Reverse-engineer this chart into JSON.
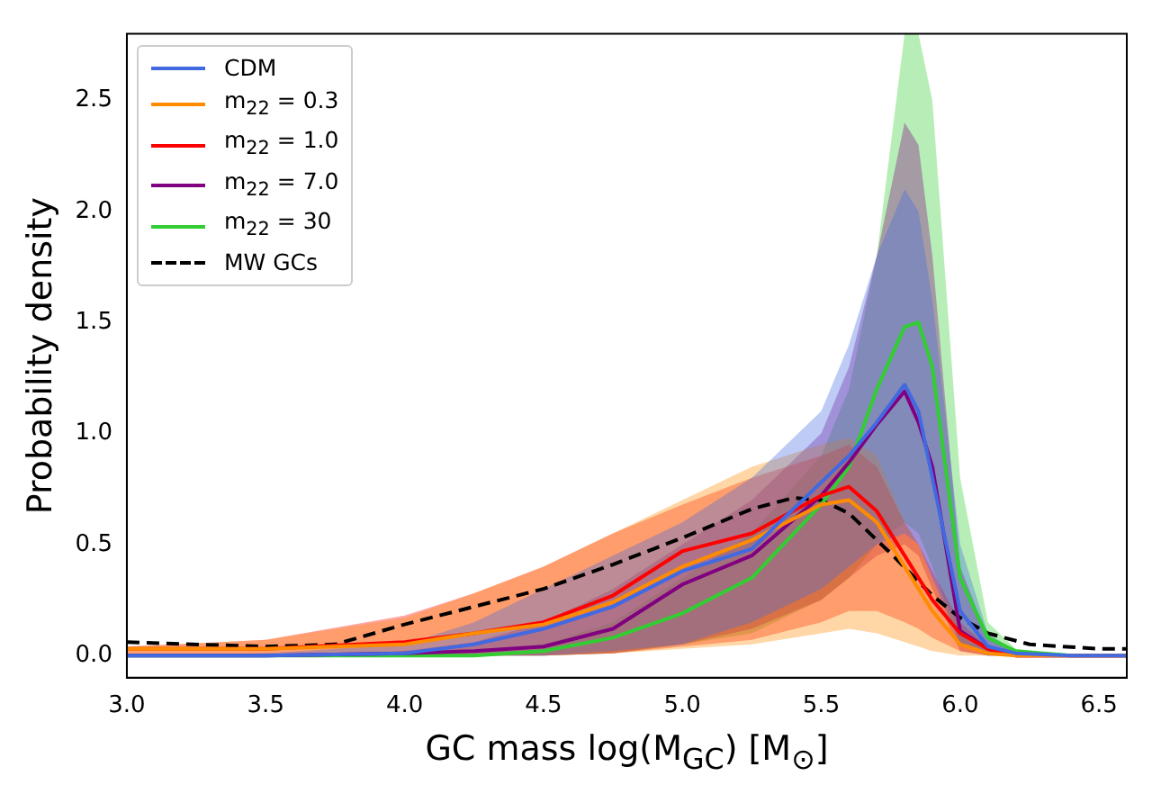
{
  "chart_data": {
    "type": "line",
    "xlabel": "GC mass log(M$_{GC}$) [M$_{⊙}$]",
    "ylabel": "Probability density",
    "x": [
      3.0,
      3.5,
      4.0,
      4.25,
      4.5,
      4.75,
      5.0,
      5.25,
      5.5,
      5.6,
      5.7,
      5.8,
      5.85,
      5.9,
      6.0,
      6.1,
      6.2,
      6.4,
      6.6
    ],
    "series": [
      {
        "name": "CDM",
        "color": "#4169e1",
        "values": [
          0,
          0,
          0.01,
          0.05,
          0.12,
          0.22,
          0.38,
          0.48,
          0.78,
          0.9,
          1.05,
          1.22,
          1.1,
          0.8,
          0.2,
          0.04,
          0.01,
          0,
          0
        ],
        "upper": [
          0,
          0.01,
          0.05,
          0.15,
          0.3,
          0.45,
          0.6,
          0.8,
          1.1,
          1.4,
          1.8,
          2.1,
          2.0,
          1.6,
          0.5,
          0.1,
          0.02,
          0,
          0
        ],
        "lower": [
          0,
          0,
          0,
          0,
          0,
          0.02,
          0.05,
          0.15,
          0.3,
          0.4,
          0.5,
          0.55,
          0.5,
          0.35,
          0.05,
          0,
          0,
          0,
          0
        ]
      },
      {
        "name": "m$_{22}$ = 0.3",
        "color": "#ff8c00",
        "values": [
          0.03,
          0.03,
          0.05,
          0.1,
          0.14,
          0.24,
          0.4,
          0.52,
          0.68,
          0.7,
          0.6,
          0.4,
          0.3,
          0.2,
          0.05,
          0.01,
          0,
          0,
          0
        ],
        "upper": [
          0.04,
          0.07,
          0.17,
          0.28,
          0.4,
          0.55,
          0.7,
          0.85,
          0.95,
          0.98,
          0.9,
          0.6,
          0.5,
          0.35,
          0.12,
          0.03,
          0,
          0,
          0
        ],
        "lower": [
          0,
          0,
          0,
          0,
          0,
          0.01,
          0.03,
          0.05,
          0.1,
          0.12,
          0.1,
          0.06,
          0.04,
          0.02,
          0,
          0,
          0,
          0,
          0
        ]
      },
      {
        "name": "m$_{22}$ = 1.0",
        "color": "#ff0000",
        "values": [
          0.03,
          0.03,
          0.06,
          0.1,
          0.15,
          0.27,
          0.47,
          0.55,
          0.72,
          0.76,
          0.65,
          0.45,
          0.35,
          0.25,
          0.1,
          0.03,
          0,
          0,
          0
        ],
        "upper": [
          0.04,
          0.07,
          0.18,
          0.28,
          0.4,
          0.55,
          0.68,
          0.8,
          0.9,
          0.95,
          0.85,
          0.6,
          0.5,
          0.38,
          0.15,
          0.04,
          0,
          0,
          0
        ],
        "lower": [
          0,
          0,
          0,
          0,
          0,
          0.01,
          0.04,
          0.07,
          0.15,
          0.2,
          0.2,
          0.15,
          0.12,
          0.08,
          0.02,
          0,
          0,
          0,
          0
        ]
      },
      {
        "name": "m$_{22}$ = 7.0",
        "color": "#800080",
        "values": [
          0,
          0,
          0.01,
          0.02,
          0.04,
          0.12,
          0.32,
          0.45,
          0.72,
          0.87,
          1.04,
          1.19,
          1.05,
          0.85,
          0.11,
          0.03,
          0,
          0,
          0
        ],
        "upper": [
          0,
          0,
          0.02,
          0.06,
          0.15,
          0.3,
          0.5,
          0.7,
          1.0,
          1.3,
          1.8,
          2.4,
          2.3,
          1.8,
          0.4,
          0.08,
          0.01,
          0,
          0
        ],
        "lower": [
          0,
          0,
          0,
          0,
          0,
          0.01,
          0.05,
          0.12,
          0.25,
          0.35,
          0.45,
          0.5,
          0.45,
          0.3,
          0.02,
          0,
          0,
          0,
          0
        ]
      },
      {
        "name": "m$_{22}$ = 30",
        "color": "#32cd32",
        "values": [
          0,
          0,
          0,
          0,
          0.02,
          0.08,
          0.19,
          0.35,
          0.68,
          0.85,
          1.2,
          1.48,
          1.5,
          1.3,
          0.35,
          0.08,
          0.02,
          0,
          0
        ],
        "upper": [
          0,
          0,
          0,
          0.01,
          0.05,
          0.15,
          0.35,
          0.55,
          0.9,
          1.2,
          1.8,
          2.8,
          2.8,
          2.5,
          0.8,
          0.15,
          0.03,
          0,
          0
        ],
        "lower": [
          0,
          0,
          0,
          0,
          0,
          0.01,
          0.05,
          0.1,
          0.25,
          0.35,
          0.5,
          0.6,
          0.55,
          0.4,
          0.05,
          0,
          0,
          0,
          0
        ]
      },
      {
        "name": "MW GCs",
        "color": "#000000",
        "line_style": "dashed",
        "x": [
          3.0,
          3.5,
          3.75,
          4.0,
          4.25,
          4.5,
          4.75,
          5.0,
          5.25,
          5.4,
          5.5,
          5.6,
          5.75,
          5.9,
          6.0,
          6.1,
          6.25,
          6.5,
          6.6
        ],
        "values": [
          0.06,
          0.04,
          0.05,
          0.14,
          0.22,
          0.3,
          0.41,
          0.53,
          0.66,
          0.71,
          0.7,
          0.64,
          0.46,
          0.27,
          0.17,
          0.1,
          0.05,
          0.03,
          0.03
        ]
      }
    ],
    "xlim": [
      3.0,
      6.6
    ],
    "xticks": [
      {
        "value": 3,
        "label": "3.0"
      },
      {
        "value": 3.5,
        "label": "3.5"
      },
      {
        "value": 4,
        "label": "4.0"
      },
      {
        "value": 4.5,
        "label": "4.5"
      },
      {
        "value": 5,
        "label": "5.0"
      },
      {
        "value": 5.5,
        "label": "5.5"
      },
      {
        "value": 6,
        "label": "6.0"
      },
      {
        "value": 6.5,
        "label": "6.5"
      }
    ],
    "ylim": [
      -0.1,
      2.8
    ],
    "yticks": [
      {
        "value": 0,
        "label": "0.0"
      },
      {
        "value": 0.5,
        "label": "0.5"
      },
      {
        "value": 1,
        "label": "1.0"
      },
      {
        "value": 1.5,
        "label": "1.5"
      },
      {
        "value": 2,
        "label": "2.0"
      },
      {
        "value": 2.5,
        "label": "2.5"
      }
    ],
    "grid": false,
    "legend": "top left",
    "marker": "none",
    "line_style": "solid"
  }
}
